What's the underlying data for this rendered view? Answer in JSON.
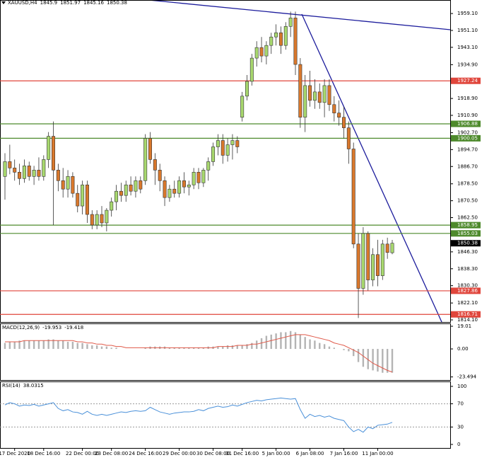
{
  "chart_data": [
    {
      "type": "candlestick",
      "title": "XAUUSD,H4",
      "categories": [
        null,
        null,
        "17 Dec 2020",
        null,
        null,
        null,
        null,
        null,
        "18 Dec 16:00",
        null,
        null,
        null,
        null,
        null,
        null,
        null,
        "22 Dec 00:00",
        null,
        null,
        null,
        null,
        null,
        "23 Dec 08:00",
        null,
        null,
        null,
        null,
        null,
        null,
        "24 Dec 16:00",
        null,
        null,
        null,
        null,
        null,
        null,
        "29 Dec 00:00",
        null,
        null,
        null,
        null,
        null,
        null,
        "30 Dec 08:00",
        null,
        null,
        null,
        null,
        null,
        "31 Dec 16:00",
        null,
        null,
        null,
        null,
        null,
        null,
        "5 Jan 00:00",
        null,
        null,
        null,
        null,
        null,
        null,
        "6 Jan 08:00",
        null,
        null,
        null,
        null,
        null,
        null,
        "7 Jan 16:00",
        null,
        null,
        null,
        null,
        null,
        null,
        "11 Jan 00:00",
        null,
        null,
        null
      ],
      "open": [
        1882,
        1889,
        1886,
        1884,
        1881,
        1887,
        1882,
        1885,
        1882,
        1890,
        1901,
        1885,
        1880,
        1876,
        1882,
        1874,
        1868,
        1878,
        1864,
        1859,
        1864,
        1860,
        1866,
        1870,
        1875,
        1873,
        1878,
        1875,
        1880,
        1880,
        1900,
        1890,
        1885,
        1880,
        1872,
        1876,
        1874,
        1880,
        1877,
        1878,
        1884,
        1879,
        1885,
        1889,
        1896,
        1899,
        1892,
        1897,
        1899,
        1910,
        1920,
        1927,
        1938,
        1943,
        1939,
        1944,
        1948,
        1950,
        1944,
        1953,
        1957,
        1935,
        1910,
        1925,
        1918,
        1922,
        1917,
        1925,
        1916,
        1912,
        1910,
        1905,
        1895,
        1850,
        1829,
        1855,
        1833,
        1845,
        1835,
        1850,
        1845.9
      ],
      "high": [
        1893,
        1897,
        1890,
        1888,
        1890,
        1889,
        1887,
        1891,
        1892,
        1903,
        1908,
        1888,
        1886,
        1885,
        1884,
        1878,
        1880,
        1880,
        1866,
        1866,
        1868,
        1867,
        1872,
        1878,
        1879,
        1880,
        1882,
        1882,
        1882,
        1902,
        1903,
        1893,
        1888,
        1882,
        1878,
        1880,
        1882,
        1884,
        1880,
        1886,
        1886,
        1886,
        1891,
        1898,
        1902,
        1902,
        1900,
        1902,
        1901,
        1922,
        1930,
        1940,
        1946,
        1948,
        1946,
        1950,
        1954,
        1953,
        1955,
        1960,
        1960,
        1938,
        1930,
        1932,
        1928,
        1926,
        1928,
        1928,
        1920,
        1918,
        1915,
        1908,
        1898,
        1855,
        1858,
        1856,
        1848,
        1852,
        1852,
        1853,
        1851.97
      ],
      "low": [
        1871,
        1883,
        1880,
        1878,
        1879,
        1880,
        1878,
        1880,
        1880,
        1886,
        1859,
        1875,
        1872,
        1872,
        1872,
        1865,
        1864,
        1860,
        1857,
        1857,
        1858,
        1856,
        1863,
        1866,
        1870,
        1870,
        1873,
        1872,
        1874,
        1878,
        1888,
        1878,
        1875,
        1868,
        1870,
        1872,
        1872,
        1874,
        1873,
        1876,
        1876,
        1877,
        1880,
        1887,
        1892,
        1888,
        1889,
        1890,
        1893,
        1908,
        1918,
        1925,
        1934,
        1936,
        1935,
        1940,
        1944,
        1940,
        1942,
        1948,
        1930,
        1905,
        1903,
        1915,
        1914,
        1914,
        1910,
        1913,
        1908,
        1906,
        1900,
        1888,
        1848,
        1815,
        1826,
        1828,
        1830,
        1830,
        1833,
        1843,
        1845.16
      ],
      "close": [
        1889,
        1886,
        1884,
        1881,
        1887,
        1882,
        1885,
        1882,
        1890,
        1901,
        1885,
        1880,
        1876,
        1882,
        1874,
        1868,
        1878,
        1864,
        1859,
        1864,
        1860,
        1866,
        1870,
        1875,
        1873,
        1878,
        1875,
        1880,
        1876,
        1900,
        1890,
        1885,
        1880,
        1872,
        1876,
        1874,
        1880,
        1877,
        1878,
        1884,
        1879,
        1885,
        1889,
        1896,
        1899,
        1892,
        1897,
        1899,
        1896,
        1920,
        1927,
        1938,
        1943,
        1939,
        1944,
        1948,
        1950,
        1944,
        1953,
        1957,
        1935,
        1910,
        1925,
        1918,
        1922,
        1917,
        1925,
        1916,
        1912,
        1910,
        1905,
        1895,
        1850,
        1829,
        1855,
        1833,
        1845,
        1835,
        1850,
        1846,
        1850.38
      ],
      "up_color": "#a8d86e",
      "down_color": "#d9782c",
      "ylim": [
        1813.1,
        1965.5
      ],
      "yticks": [
        {
          "value": 1959.1,
          "label": "1959.10"
        },
        {
          "value": 1951.1,
          "label": "1951.10"
        },
        {
          "value": 1943.1,
          "label": "1943.10"
        },
        {
          "value": 1934.9,
          "label": "1934.90"
        },
        {
          "value": 1918.9,
          "label": "1918.90"
        },
        {
          "value": 1910.9,
          "label": "1910.90"
        },
        {
          "value": 1902.7,
          "label": "1902.70"
        },
        {
          "value": 1894.7,
          "label": "1894.70"
        },
        {
          "value": 1886.7,
          "label": "1886.70"
        },
        {
          "value": 1878.5,
          "label": "1878.50"
        },
        {
          "value": 1870.5,
          "label": "1870.50"
        },
        {
          "value": 1862.5,
          "label": "1862.50"
        },
        {
          "value": 1846.3,
          "label": "1846.30"
        },
        {
          "value": 1838.3,
          "label": "1838.30"
        },
        {
          "value": 1830.3,
          "label": "1830.30"
        },
        {
          "value": 1822.1,
          "label": "1822.10"
        },
        {
          "value": 1814.1,
          "label": "1814.10"
        }
      ],
      "levels": [
        {
          "value": 1927.24,
          "color": "#e0463c"
        },
        {
          "value": 1906.88,
          "color": "#4e8a2c"
        },
        {
          "value": 1900.05,
          "color": "#4e8a2c"
        },
        {
          "value": 1858.95,
          "color": "#4e8a2c"
        },
        {
          "value": 1855.03,
          "color": "#4e8a2c"
        },
        {
          "value": 1827.86,
          "color": "#e0463c"
        },
        {
          "value": 1816.71,
          "color": "#e0463c"
        }
      ]
    },
    {
      "type": "bar",
      "title": "MACD(12,26,9)",
      "series": [
        {
          "style": "bar",
          "color": "#b4b4b4",
          "values": [
            5,
            6,
            6,
            7,
            7,
            7,
            7,
            7,
            7,
            8,
            8,
            7,
            7,
            6,
            6,
            5,
            5,
            4,
            3,
            3,
            2,
            2,
            1,
            1,
            0,
            0,
            0,
            0,
            0,
            1,
            2,
            2,
            2,
            2,
            1,
            1,
            1,
            1,
            1,
            1,
            1,
            1,
            2,
            2,
            2,
            2,
            3,
            3,
            3,
            3,
            4,
            5,
            7,
            9,
            11,
            12,
            13,
            14,
            14,
            15,
            14,
            12,
            10,
            8,
            7,
            5,
            4,
            2,
            1,
            0,
            -1,
            -2,
            -6,
            -11,
            -15,
            -17,
            -18,
            -19,
            -20,
            -20,
            -19.953
          ]
        },
        {
          "style": "line",
          "color": "#e05a4a",
          "values": [
            6,
            6,
            6,
            6,
            7,
            7,
            7,
            7,
            7,
            7,
            7,
            7,
            7,
            7,
            7,
            6,
            6,
            5,
            5,
            4,
            4,
            3,
            3,
            2,
            2,
            1,
            1,
            1,
            1,
            1,
            1,
            1,
            1,
            1,
            1,
            1,
            1,
            1,
            1,
            1,
            1,
            1,
            1,
            1,
            2,
            2,
            2,
            2,
            3,
            3,
            3,
            4,
            4,
            5,
            6,
            7,
            8,
            9,
            10,
            11,
            12,
            12,
            12,
            11,
            10,
            9,
            8,
            7,
            5,
            4,
            3,
            1,
            -1,
            -3,
            -6,
            -9,
            -12,
            -14,
            -16,
            -18,
            -19.418
          ]
        }
      ],
      "ylim": [
        -26.1,
        21.4
      ],
      "yticks": [
        19.01,
        {
          "value": 0,
          "label": "0.00"
        },
        -23.494
      ]
    },
    {
      "type": "line",
      "title": "RSI(14)",
      "series": [
        {
          "color": "#4a90d9",
          "values": [
            68,
            72,
            70,
            66,
            68,
            67,
            69,
            66,
            68,
            70,
            72,
            62,
            58,
            60,
            56,
            55,
            52,
            57,
            52,
            50,
            52,
            50,
            52,
            54,
            56,
            55,
            57,
            58,
            57,
            58,
            64,
            60,
            56,
            54,
            52,
            54,
            55,
            56,
            56,
            57,
            60,
            58,
            62,
            64,
            66,
            64,
            65,
            68,
            66,
            69,
            72,
            74,
            76,
            75,
            77,
            78,
            79,
            80,
            79,
            78,
            79,
            60,
            45,
            52,
            48,
            50,
            47,
            49,
            45,
            43,
            41,
            30,
            22,
            26,
            21,
            30,
            27,
            33,
            34,
            35,
            38.0315
          ]
        }
      ],
      "ylim": [
        -6.1,
        108.5
      ],
      "yticks": [
        100,
        70,
        30,
        0
      ],
      "levels": [
        70,
        30
      ]
    }
  ]
}
